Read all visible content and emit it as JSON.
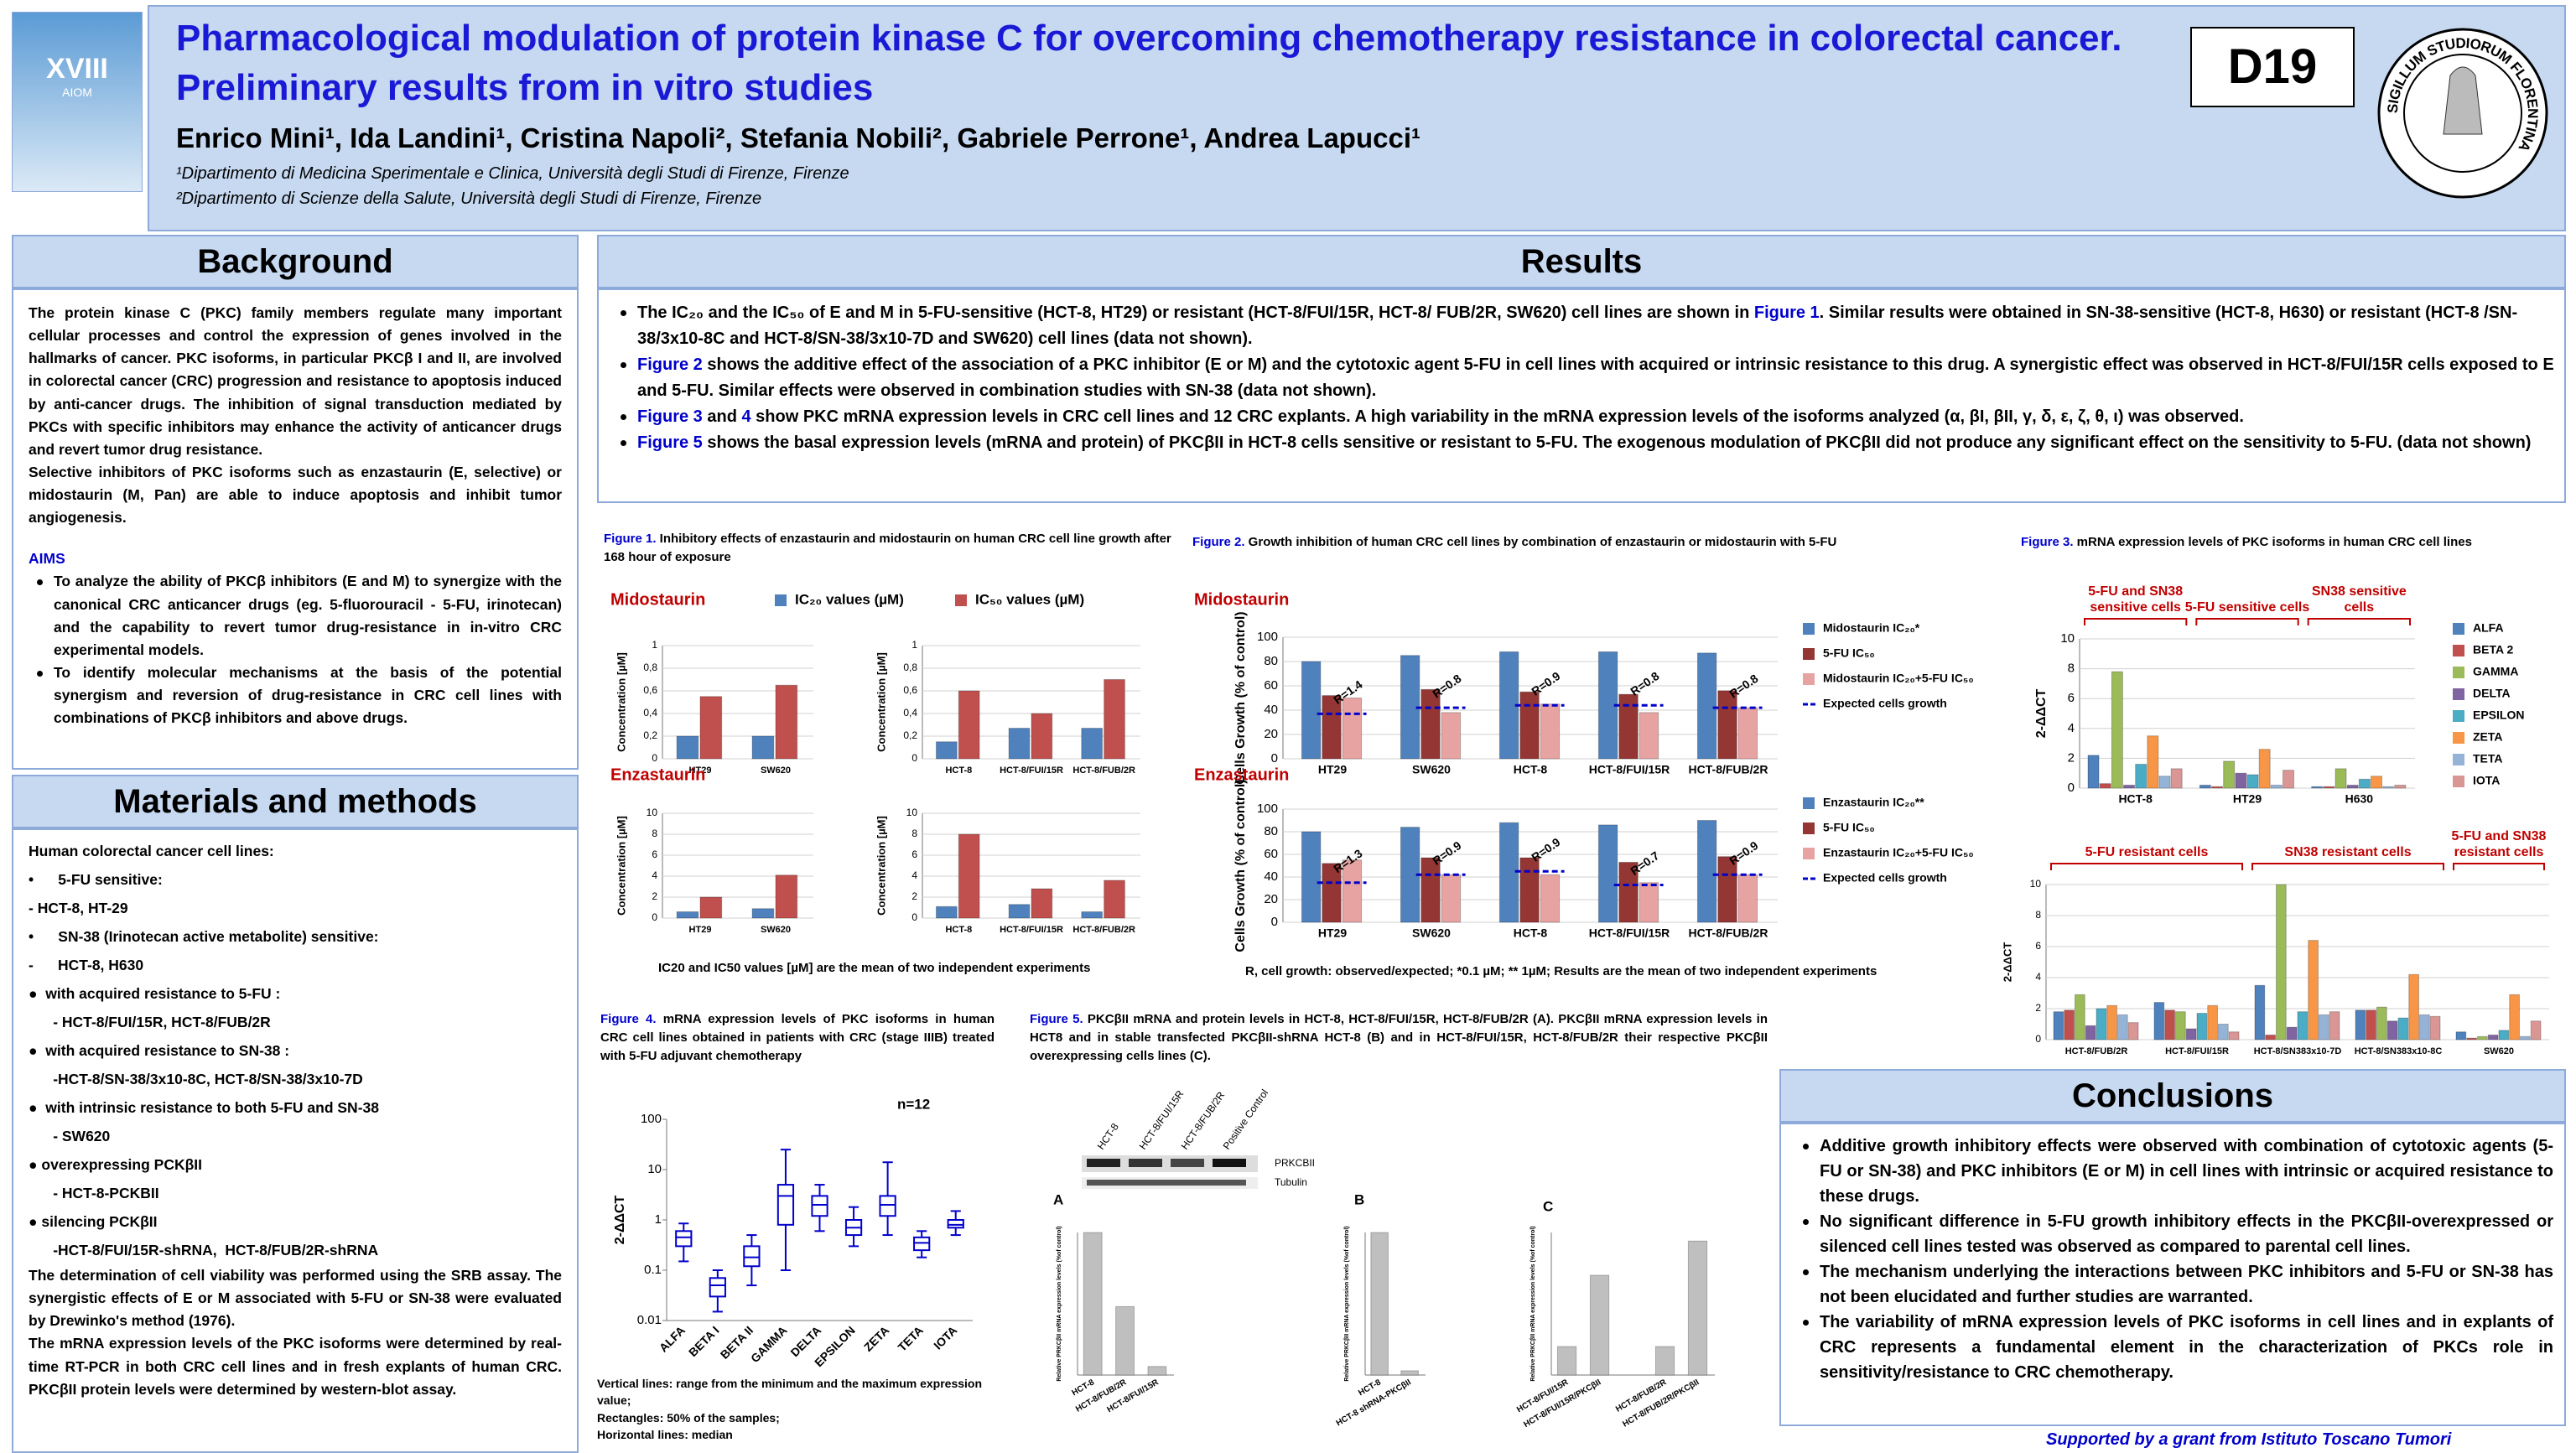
{
  "header": {
    "title": "Pharmacological modulation of protein kinase C for overcoming chemotherapy resistance in colorectal cancer. Preliminary results from in vitro studies",
    "authors": "Enrico Mini¹, Ida Landini¹, Cristina Napoli², Stefania Nobili², Gabriele Perrone¹, Andrea Lapucci¹",
    "affiliations": [
      "¹Dipartimento di Medicina Sperimentale e Clinica, Università degli Studi di Firenze, Firenze",
      "²Dipartimento di Scienze della Salute, Università degli Studi di Firenze, Firenze"
    ],
    "code": "D19",
    "logo": [
      "XVIII",
      "AIOM"
    ],
    "seal": "SIGILLUM STUDIORUM FLORENTINA"
  },
  "background": {
    "heading": "Background",
    "paragraphs": [
      "The protein kinase C (PKC) family members regulate many important cellular processes and control the expression of genes involved in the hallmarks of cancer. PKC isoforms, in particular PKCβ I and II, are involved in colorectal cancer (CRC) progression and resistance to apoptosis induced by anti-cancer drugs. The inhibition of signal transduction mediated by PKCs with specific inhibitors may enhance the activity of anticancer drugs and revert tumor drug resistance.",
      "Selective inhibitors of PKC isoforms such as enzastaurin (E, selective) or midostaurin (M, Pan) are able to induce apoptosis and inhibit tumor angiogenesis."
    ],
    "aims_heading": "AIMS",
    "aims": [
      "To analyze the ability of PKCβ inhibitors (E and M) to synergize with the canonical CRC anticancer drugs (eg. 5-fluorouracil - 5-FU, irinotecan) and the capability to revert tumor drug-resistance in in-vitro CRC experimental models.",
      "To identify molecular mechanisms at the basis of the potential synergism and reversion of drug-resistance in CRC cell lines with combinations of PKCβ inhibitors and above  drugs."
    ]
  },
  "materials": {
    "heading": "Materials and methods",
    "lines": [
      "Human colorectal cancer cell lines:",
      "•      5-FU sensitive:",
      "- HCT-8, HT-29",
      "•      SN-38 (Irinotecan active metabolite) sensitive:",
      "-      HCT-8, H630",
      "●  with acquired resistance to 5-FU :",
      "      - HCT-8/FUI/15R, HCT-8/FUB/2R",
      "●  with acquired resistance to SN-38 :",
      "      -HCT-8/SN-38/3x10-8C, HCT-8/SN-38/3x10-7D",
      "●  with intrinsic resistance to both 5-FU and SN-38",
      "      - SW620",
      "● overexpressing PCKβII",
      "      - HCT-8-PCKBII",
      "● silencing PCKβII",
      "      -HCT-8/FUI/15R-shRNA,  HCT-8/FUB/2R-shRNA"
    ],
    "paragraphs": [
      "The determination of cell viability was performed using the SRB assay. The synergistic effects of E or M associated with 5-FU or SN-38 were evaluated by Drewinko's method (1976).",
      "The mRNA expression levels of the PKC isoforms were determined by real-time RT-PCR in both CRC cell lines and in fresh explants of human CRC. PKCβII protein levels were determined by western-blot assay."
    ]
  },
  "results": {
    "heading": "Results",
    "bullets": [
      [
        "The IC₂₀ and the IC₅₀ of E and M in 5-FU-sensitive (HCT-8, HT29) or resistant (HCT-8/FUI/15R, HCT-8/ FUB/2R, SW620) cell lines are shown in ",
        {
          "ref": "Figure 1"
        },
        ". Similar results were obtained in SN-38-sensitive (HCT-8, H630) or resistant (HCT-8 /SN-38/3x10-8C and HCT-8/SN-38/3x10-7D and SW620) cell lines (data not shown)."
      ],
      [
        {
          "ref": "Figure 2"
        },
        " shows the additive effect of the association of  a PKC inhibitor (E or M) and the cytotoxic agent 5-FU in cell lines with acquired or intrinsic resistance to this drug. A synergistic effect was observed in HCT-8/FUI/15R cells exposed to E and 5-FU. Similar effects were observed in combination studies with SN-38 (data not shown)."
      ],
      [
        {
          "ref": "Figure 3"
        },
        " and ",
        {
          "ref": "4"
        },
        " show PKC mRNA expression levels in CRC cell lines and 12 CRC explants.  A high variability in the mRNA expression levels  of the isoforms analyzed (α, βI, βII, γ, δ, ε, ζ, θ, ι) was observed."
      ],
      [
        {
          "ref": "Figure 5"
        },
        " shows the basal expression levels (mRNA and protein) of PKCβII in HCT-8 cells sensitive or resistant to 5-FU. The exogenous modulation of PKCβII did not produce any significant effect on the sensitivity to 5-FU. (data not shown)"
      ]
    ]
  },
  "figures": [
    {
      "label": "Figure 1.",
      "caption": "  Inhibitory effects of enzastaurin and midostaurin on human CRC cell line growth after 168 hour  of exposure",
      "note": "IC20 and IC50 values [µM] are the mean of two independent experiments"
    },
    {
      "label": "Figure 2.",
      "caption": " Growth inhibition of human CRC cell lines by combination of enzastaurin or midostaurin  with 5-FU",
      "note": "R, cell growth: observed/expected; *0.1 µM; ** 1µM; Results are the mean of two independent experiments"
    },
    {
      "label": "Figure 3.",
      "caption": "  mRNA expression levels  of PKC isoforms in human CRC cell lines"
    },
    {
      "label": "Figure 4.",
      "caption": "  mRNA expression levels  of PKC isoforms in human CRC cell lines obtained in patients with CRC (stage IIIB) treated with 5-FU adjuvant chemotherapy",
      "notes": [
        "Vertical lines: range from the minimum and the maximum expression value;",
        "Rectangles: 50% of the samples;",
        "Horizontal lines: median"
      ]
    },
    {
      "label": "Figure 5.",
      "caption": "  PKCβII mRNA and protein levels in HCT-8, HCT-8/FUI/15R, HCT-8/FUB/2R (A). PKCβII mRNA expression levels in HCT8 and in stable transfected PKCβII-shRNA HCT-8 (B) and in HCT-8/FUI/15R, HCT-8/FUB/2R their respective PKCβII overexpressing cells lines (C).",
      "blot_lanes": [
        "HCT-8",
        "HCT-8/FUI/15R",
        "HCT-8/FUB/2R",
        "Positive Control"
      ],
      "blot_bands": [
        "PRKCBII",
        "Tubulin"
      ]
    }
  ],
  "conclusions": {
    "heading": "Conclusions",
    "bullets": [
      "Additive growth inhibitory effects were observed with combination of cytotoxic agents (5-FU or SN-38) and PKC inhibitors (E or M) in cell lines with intrinsic or acquired resistance to these drugs.",
      "No significant difference in 5-FU growth inhibitory effects in the PKCβII-overexpressed or silenced cell lines tested was observed as compared to parental cell lines.",
      "The mechanism underlying the interactions between PKC inhibitors and 5-FU or SN-38 has not been elucidated and further studies are warranted.",
      "The variability of mRNA expression levels of PKC isoforms in cell lines and in explants of CRC represents a fundamental element in the characterization of PKCs role in sensitivity/resistance to CRC chemotherapy."
    ]
  },
  "footer": "Supported by a grant from Istituto Toscano Tumori",
  "chart_data": [
    {
      "type": "bar",
      "title": "Midostaurin",
      "y_label": "Concentration [µM]",
      "legend": "top",
      "grid": true,
      "categories": [
        "HT29",
        "SW620"
      ],
      "ylim": [
        0,
        1
      ],
      "yticks": [
        0,
        {
          "value": 0.2,
          "label": "0,2"
        },
        {
          "value": 0.4,
          "label": "0,4"
        },
        {
          "value": 0.6,
          "label": "0,6"
        },
        {
          "value": 0.8,
          "label": "0,8"
        },
        1
      ],
      "series": [
        {
          "name": "IC₂₀ values (µM)",
          "color": "#4f81bd",
          "values": [
            0.2,
            0.2
          ]
        },
        {
          "name": "IC₅₀ values (µM)",
          "color": "#c0504d",
          "values": [
            0.55,
            0.65
          ]
        }
      ]
    },
    {
      "type": "bar",
      "y_label": "Concentration [µM]",
      "grid": true,
      "categories": [
        "HCT-8",
        "HCT-8/FUI/15R",
        "HCT-8/FUB/2R"
      ],
      "ylim": [
        0,
        1
      ],
      "yticks": [
        0,
        {
          "value": 0.2,
          "label": "0,2"
        },
        {
          "value": 0.4,
          "label": "0,4"
        },
        {
          "value": 0.6,
          "label": "0,6"
        },
        {
          "value": 0.8,
          "label": "0,8"
        },
        1
      ],
      "series": [
        {
          "color": "#4f81bd",
          "values": [
            0.15,
            0.27,
            0.27
          ]
        },
        {
          "color": "#c0504d",
          "values": [
            0.6,
            0.4,
            0.7
          ]
        }
      ]
    },
    {
      "type": "bar",
      "title": "Enzastaurin",
      "y_label": "Concentration [µM]",
      "grid": true,
      "categories": [
        "HT29",
        "SW620"
      ],
      "ylim": [
        0,
        10
      ],
      "yticks": [
        0,
        2,
        4,
        6,
        8,
        10
      ],
      "series": [
        {
          "color": "#4f81bd",
          "values": [
            0.6,
            0.9
          ]
        },
        {
          "color": "#c0504d",
          "values": [
            2,
            4.1
          ]
        }
      ]
    },
    {
      "type": "bar",
      "y_label": "Concentration [µM]",
      "grid": true,
      "categories": [
        "HCT-8",
        "HCT-8/FUI/15R",
        "HCT-8/FUB/2R"
      ],
      "ylim": [
        0,
        10
      ],
      "yticks": [
        0,
        2,
        4,
        6,
        8,
        10
      ],
      "series": [
        {
          "color": "#4f81bd",
          "values": [
            1.1,
            1.3,
            0.6
          ]
        },
        {
          "color": "#c0504d",
          "values": [
            8,
            2.8,
            3.6
          ]
        }
      ]
    },
    {
      "type": "bar",
      "title": "Midostaurin",
      "y_label": "Cells Growth (% of control)",
      "legend": "right",
      "grid": true,
      "categories": [
        "HT29",
        "SW620",
        "HCT-8",
        "HCT-8/FUI/15R",
        "HCT-8/FUB/2R"
      ],
      "ylim": [
        0,
        100
      ],
      "yticks": [
        0,
        20,
        40,
        60,
        80,
        100
      ],
      "annotations": [
        "R=1.4",
        "R=0.8",
        "R=0.9",
        "R=0.8",
        "R=0.8"
      ],
      "series": [
        {
          "name": "Midostaurin IC₂₀*",
          "color": "#4f81bd",
          "values": [
            80,
            85,
            88,
            88,
            87
          ]
        },
        {
          "name": "5-FU IC₅₀",
          "color": "#943634",
          "values": [
            52,
            57,
            55,
            53,
            56
          ]
        },
        {
          "name": "Midostaurin IC₂₀+5-FU IC₅₀",
          "color": "#e6a3a1",
          "values": [
            50,
            38,
            45,
            38,
            42
          ]
        },
        {
          "name": "Expected cells growth",
          "color": "#0000cc",
          "style": "dashed-line",
          "values": [
            37,
            42,
            44,
            44,
            42
          ]
        }
      ]
    },
    {
      "type": "bar",
      "title": "Enzastaurin",
      "y_label": "Cells Growth (% of control)",
      "legend": "right",
      "grid": true,
      "categories": [
        "HT29",
        "SW620",
        "HCT-8",
        "HCT-8/FUI/15R",
        "HCT-8/FUB/2R"
      ],
      "ylim": [
        0,
        100
      ],
      "yticks": [
        0,
        20,
        40,
        60,
        80,
        100
      ],
      "annotations": [
        "R=1.3",
        "R=0.9",
        "R=0.9",
        "R=0.7",
        "R=0.9"
      ],
      "series": [
        {
          "name": "Enzastaurin IC₂₀**",
          "color": "#4f81bd",
          "values": [
            80,
            84,
            88,
            86,
            90
          ]
        },
        {
          "name": "5-FU IC₅₀",
          "color": "#943634",
          "values": [
            52,
            57,
            57,
            53,
            58
          ]
        },
        {
          "name": "Enzastaurin IC₂₀+5-FU IC₅₀",
          "color": "#e6a3a1",
          "values": [
            55,
            42,
            42,
            35,
            42
          ]
        },
        {
          "name": "Expected cells growth",
          "color": "#0000cc",
          "style": "dashed-line",
          "values": [
            35,
            42,
            45,
            33,
            42
          ]
        }
      ]
    },
    {
      "type": "bar",
      "y_label": "2-ΔΔCT",
      "legend": "right",
      "grid": true,
      "groups": [
        {
          "label": "5-FU and SN38 sensitive cells",
          "categories": [
            "HCT-8"
          ]
        },
        {
          "label": "5-FU sensitive cells",
          "categories": [
            "HT29"
          ]
        },
        {
          "label": "SN38 sensitive cells",
          "categories": [
            "H630"
          ]
        }
      ],
      "ylim": [
        0,
        10
      ],
      "yticks": [
        0,
        2,
        4,
        6,
        8,
        10
      ],
      "series": [
        {
          "name": "ALFA",
          "color": "#4f81bd",
          "values": [
            2.2,
            0.2,
            0.1
          ]
        },
        {
          "name": "BETA 2",
          "color": "#c0504d",
          "values": [
            0.3,
            0.1,
            0.1
          ]
        },
        {
          "name": "GAMMA",
          "color": "#9bbb59",
          "values": [
            7.8,
            1.8,
            1.3
          ]
        },
        {
          "name": "DELTA",
          "color": "#8064a2",
          "values": [
            0.2,
            1,
            0.2
          ]
        },
        {
          "name": "EPSILON",
          "color": "#4bacc6",
          "values": [
            1.6,
            0.9,
            0.6
          ]
        },
        {
          "name": "ZETA",
          "color": "#f79646",
          "values": [
            3.5,
            2.6,
            0.8
          ]
        },
        {
          "name": "TETA",
          "color": "#95b3d7",
          "values": [
            0.8,
            0.2,
            0.1
          ]
        },
        {
          "name": "IOTA",
          "color": "#d99694",
          "values": [
            1.3,
            1.2,
            0.2
          ]
        }
      ]
    },
    {
      "type": "bar",
      "y_label": "2-ΔΔCT",
      "grid": true,
      "groups": [
        {
          "label": "5-FU resistant cells",
          "categories": [
            "HCT-8/FUB/2R",
            "HCT-8/FUI/15R"
          ]
        },
        {
          "label": "SN38 resistant cells",
          "categories": [
            "HCT-8/SN383x10-7D",
            "HCT-8/SN383x10-8C"
          ]
        },
        {
          "label": "5-FU and SN38 resistant cells",
          "categories": [
            "SW620"
          ]
        }
      ],
      "ylim": [
        0,
        10
      ],
      "yticks": [
        0,
        2,
        4,
        6,
        8,
        10
      ],
      "series": [
        {
          "color": "#4f81bd",
          "values": [
            1.8,
            2.4,
            3.5,
            1.9,
            0.5
          ]
        },
        {
          "color": "#c0504d",
          "values": [
            1.9,
            1.9,
            0.3,
            1.9,
            0.1
          ]
        },
        {
          "color": "#9bbb59",
          "values": [
            2.9,
            1.8,
            10,
            2.1,
            0.2
          ]
        },
        {
          "color": "#8064a2",
          "values": [
            0.9,
            0.7,
            0.8,
            1.2,
            0.3
          ]
        },
        {
          "color": "#4bacc6",
          "values": [
            2,
            1.7,
            1.8,
            1.4,
            0.6
          ]
        },
        {
          "color": "#f79646",
          "values": [
            2.2,
            2.2,
            6.4,
            4.2,
            2.9
          ]
        },
        {
          "color": "#95b3d7",
          "values": [
            1.6,
            1,
            1.6,
            1.6,
            0.2
          ]
        },
        {
          "color": "#d99694",
          "values": [
            1.1,
            0.5,
            1.8,
            1.5,
            1.2
          ]
        }
      ]
    },
    {
      "type": "box",
      "title": "n=12",
      "y_label": "2-ΔΔCT",
      "log": true,
      "color": "#0000cc",
      "categories": [
        "ALFA",
        "BETA I",
        "BETA II",
        "GAMMA",
        "DELTA",
        "EPSILON",
        "ZETA",
        "TETA",
        "IOTA"
      ],
      "ylim": [
        0.01,
        100
      ],
      "yticks": [
        0.01,
        0.1,
        1,
        10,
        100
      ],
      "boxes": [
        {
          "min": 0.15,
          "q1": 0.3,
          "median": 0.45,
          "q3": 0.6,
          "max": 0.85
        },
        {
          "min": 0.015,
          "q1": 0.03,
          "median": 0.05,
          "q3": 0.07,
          "max": 0.1
        },
        {
          "min": 0.05,
          "q1": 0.12,
          "median": 0.18,
          "q3": 0.3,
          "max": 0.5
        },
        {
          "min": 0.1,
          "q1": 0.8,
          "median": 3,
          "q3": 5,
          "max": 25
        },
        {
          "min": 0.6,
          "q1": 1.2,
          "median": 2,
          "q3": 3,
          "max": 5
        },
        {
          "min": 0.3,
          "q1": 0.5,
          "median": 0.7,
          "q3": 1,
          "max": 1.8
        },
        {
          "min": 0.5,
          "q1": 1.2,
          "median": 2,
          "q3": 3,
          "max": 14
        },
        {
          "min": 0.18,
          "q1": 0.25,
          "median": 0.35,
          "q3": 0.45,
          "max": 0.6
        },
        {
          "min": 0.5,
          "q1": 0.7,
          "median": 0.8,
          "q3": 1,
          "max": 1.5
        }
      ]
    },
    {
      "type": "bar",
      "title": "A",
      "y_label": "Relative PRKCβII mRNA expression levels (%of control)",
      "categories": [
        "HCT-8",
        "HCT-8/FUB/2R",
        "HCT-8/FUI/15R"
      ],
      "ylim": [
        0,
        100
      ],
      "series": [
        {
          "color": "#bfbfbf",
          "values": [
            100,
            48,
            6
          ]
        }
      ]
    },
    {
      "type": "bar",
      "title": "B",
      "y_label": "Relative PRKCβII mRNA expression levels (%of control)",
      "categories": [
        "HCT-8",
        "HCT-8 shRNA-PKCβII"
      ],
      "ylim": [
        0,
        100
      ],
      "series": [
        {
          "color": "#bfbfbf",
          "values": [
            100,
            3
          ]
        }
      ]
    },
    {
      "type": "bar",
      "title": "C",
      "y_label": "Relative PRKCβII mRNA expression levels (%of control)",
      "categories": [
        "HCT-8/FUI/15R",
        "HCT-8/FUI/15R/PKCβII",
        null,
        "HCT-8/FUB/2R",
        "HCT-8/FUB/2R/PKCβII"
      ],
      "ylim": [
        0,
        500
      ],
      "series": [
        {
          "color": "#bfbfbf",
          "values": [
            100,
            350,
            null,
            100,
            470
          ]
        }
      ]
    }
  ]
}
